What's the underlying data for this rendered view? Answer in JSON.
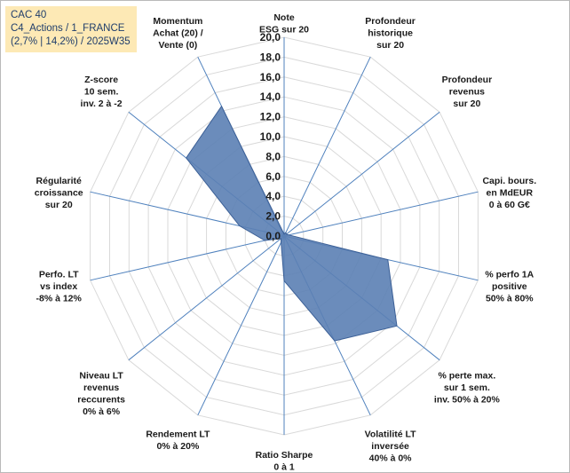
{
  "title_box": {
    "line1": "CAC 40",
    "line2": "C4_Actions / 1_FRANCE",
    "line3": "(2,7% | 14,2%) / 2025W35"
  },
  "colors": {
    "grid": "#d9d9d9",
    "spoke": "#4f81bd",
    "series_fill": "#5b7fb4",
    "series_stroke": "#3b5f96",
    "title_bg": "#fde9b5"
  },
  "chart_data": {
    "type": "radar",
    "rmin": 0,
    "rmax": 20,
    "ticks": [
      "0,0",
      "2,0",
      "4,0",
      "6,0",
      "8,0",
      "10,0",
      "12,0",
      "14,0",
      "16,0",
      "18,0",
      "20,0"
    ],
    "grid": true,
    "legend": "none",
    "categories": [
      [
        "Note",
        "ESG sur 20"
      ],
      [
        "Profondeur",
        "historique",
        "sur 20"
      ],
      [
        "Profondeur",
        "revenus",
        "sur 20"
      ],
      [
        "Capi. bours.",
        "en MdEUR",
        "0 à 60 G€"
      ],
      [
        "% perfo 1A",
        "positive",
        "50% à 80%"
      ],
      [
        "% perte max.",
        "sur 1 sem.",
        "inv. 50% à 20%"
      ],
      [
        "Volatilité LT",
        "inversée",
        "40% à 0%"
      ],
      [
        "Ratio Sharpe",
        "0 à 1"
      ],
      [
        "Rendement LT",
        "0% à 20%"
      ],
      [
        "Niveau LT",
        "revenus",
        "reccurents",
        "0% à 6%"
      ],
      [
        "Perfo. LT",
        "vs index",
        "-8% à 12%"
      ],
      [
        "Régularité",
        "croissance",
        "sur 20"
      ],
      [
        "Z-score",
        "10 sem.",
        "inv. 2 à -2"
      ],
      [
        "Momentum",
        "Achat (20) /",
        "Vente (0)"
      ]
    ],
    "series": [
      {
        "values": [
          0.2,
          0.4,
          0.3,
          0.5,
          10.7,
          14.5,
          11.7,
          4.5,
          0.7,
          0.4,
          2.0,
          4.6,
          12.6,
          14.5
        ]
      }
    ]
  }
}
